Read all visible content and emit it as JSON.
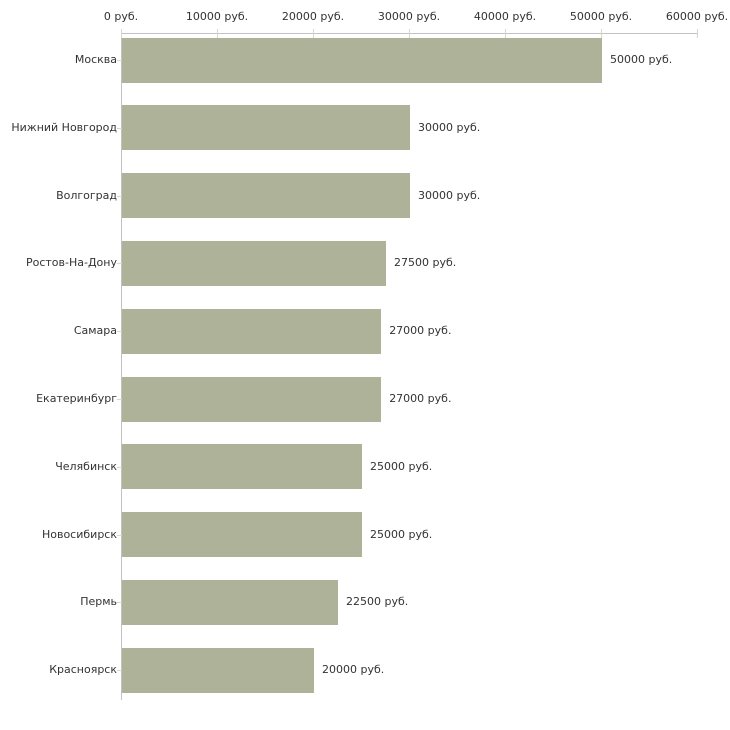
{
  "chart_data": {
    "type": "bar",
    "orientation": "horizontal",
    "title": "",
    "xlabel": "",
    "ylabel": "",
    "categories": [
      "Москва",
      "Нижний Новгород",
      "Волгоград",
      "Ростов-На-Дону",
      "Самара",
      "Екатеринбург",
      "Челябинск",
      "Новосибирск",
      "Пермь",
      "Красноярск"
    ],
    "values": [
      50000,
      30000,
      30000,
      27500,
      27000,
      27000,
      25000,
      25000,
      22500,
      20000
    ],
    "value_labels": [
      "50000 руб.",
      "30000 руб.",
      "30000 руб.",
      "27500 руб.",
      "27000 руб.",
      "27000 руб.",
      "25000 руб.",
      "25000 руб.",
      "22500 руб.",
      "20000 руб."
    ],
    "x_axis": {
      "position": "top",
      "range": [
        0,
        60000
      ],
      "ticks": [
        0,
        10000,
        20000,
        30000,
        40000,
        50000,
        60000
      ],
      "tick_labels": [
        "0 руб.",
        "10000 руб.",
        "20000 руб.",
        "30000 руб.",
        "40000 руб.",
        "50000 руб.",
        "60000 руб."
      ]
    },
    "grid": false,
    "legend": false,
    "colors": {
      "bar": "#adb298",
      "axis": "#c2c2c2",
      "tick": "#d7d9c1",
      "text": "#333333",
      "background": "#ffffff"
    }
  }
}
